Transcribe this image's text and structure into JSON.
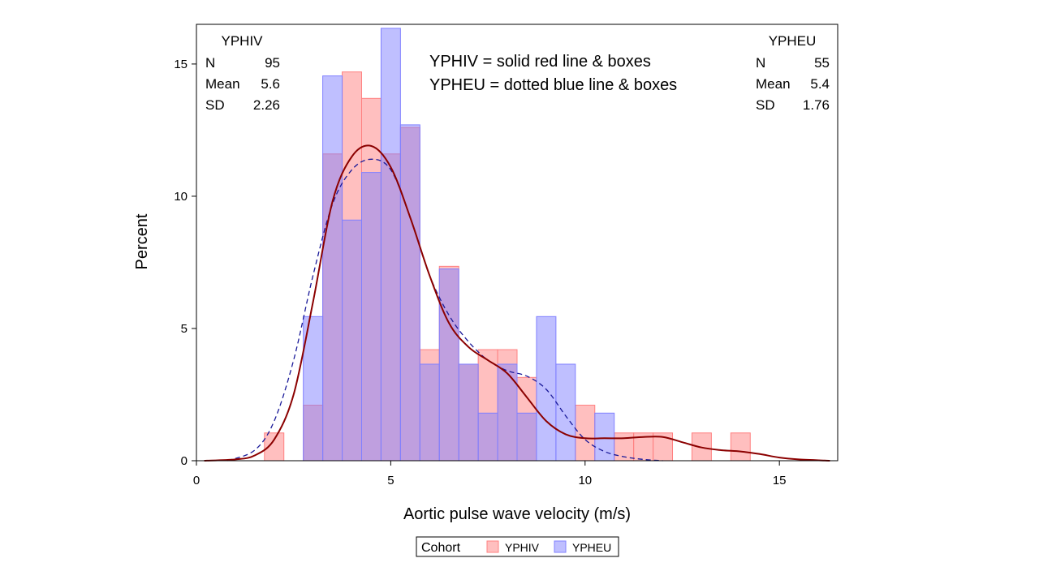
{
  "chart_data": {
    "type": "histogram",
    "xlabel": "Aortic pulse wave velocity (m/s)",
    "ylabel": "Percent",
    "xlim": [
      0,
      16.5
    ],
    "ylim": [
      0,
      16.5
    ],
    "x_ticks": [
      0,
      5,
      10,
      15
    ],
    "y_ticks": [
      0,
      5,
      10,
      15
    ],
    "bin_width": 0.5,
    "bin_starts": [
      1.75,
      2.25,
      2.75,
      3.25,
      3.75,
      4.25,
      4.75,
      5.25,
      5.75,
      6.25,
      6.75,
      7.25,
      7.75,
      8.25,
      8.75,
      9.25,
      9.75,
      10.25,
      10.75,
      11.25,
      11.75,
      12.25,
      12.75,
      13.25,
      13.75
    ],
    "series": [
      {
        "name": "YPHIV",
        "color": "#ff8080",
        "line_color": "#8b0000",
        "line_style": "solid",
        "values": [
          1.05,
          0,
          2.1,
          11.6,
          14.7,
          13.7,
          11.6,
          12.6,
          4.2,
          7.35,
          3.65,
          4.2,
          4.2,
          3.15,
          0,
          0,
          2.1,
          0,
          1.05,
          1.05,
          1.05,
          0,
          1.05,
          0,
          1.05
        ],
        "density_x": [
          0.2,
          1.0,
          1.5,
          2.0,
          2.5,
          3.0,
          3.5,
          4.0,
          4.5,
          5.0,
          5.5,
          6.0,
          6.5,
          7.0,
          7.5,
          8.0,
          8.5,
          9.0,
          9.5,
          10.0,
          10.5,
          11.0,
          11.5,
          12.0,
          12.5,
          13.0,
          13.5,
          14.0,
          14.5,
          15.0,
          15.5,
          16.3
        ],
        "density_y": [
          0,
          0.05,
          0.2,
          0.8,
          2.5,
          6.0,
          9.8,
          11.5,
          11.9,
          11.1,
          9.2,
          7.0,
          5.2,
          4.3,
          3.8,
          3.3,
          2.4,
          1.5,
          1.0,
          0.85,
          0.85,
          0.85,
          0.9,
          0.9,
          0.7,
          0.5,
          0.4,
          0.35,
          0.25,
          0.12,
          0.05,
          0
        ]
      },
      {
        "name": "YPHEU",
        "color": "#8080ff",
        "line_color": "#1a1a99",
        "line_style": "dashed",
        "values": [
          0,
          0,
          5.45,
          14.55,
          9.1,
          10.9,
          16.35,
          12.7,
          3.65,
          7.25,
          3.65,
          1.8,
          3.65,
          1.8,
          5.45,
          3.65,
          0,
          1.8,
          0,
          0,
          0,
          0,
          0,
          0,
          0
        ],
        "density_x": [
          0.8,
          1.5,
          2.0,
          2.5,
          3.0,
          3.5,
          4.0,
          4.5,
          5.0,
          5.5,
          6.0,
          6.5,
          7.0,
          7.5,
          8.0,
          8.5,
          9.0,
          9.5,
          10.0,
          10.5,
          11.0,
          11.5,
          12.0
        ],
        "density_y": [
          0,
          0.4,
          1.5,
          3.8,
          7.0,
          9.7,
          11.0,
          11.4,
          11.0,
          9.2,
          7.0,
          5.5,
          4.5,
          3.8,
          3.4,
          3.2,
          2.7,
          1.7,
          0.8,
          0.35,
          0.15,
          0.05,
          0
        ]
      }
    ]
  },
  "stats_left": {
    "title": "YPHIV",
    "rows": [
      {
        "label": "N",
        "value": "95"
      },
      {
        "label": "Mean",
        "value": "5.6"
      },
      {
        "label": "SD",
        "value": "2.26"
      }
    ]
  },
  "stats_right": {
    "title": "YPHEU",
    "rows": [
      {
        "label": "N",
        "value": "55"
      },
      {
        "label": "Mean",
        "value": "5.4"
      },
      {
        "label": "SD",
        "value": "1.76"
      }
    ]
  },
  "annotation": {
    "line1": "YPHIV = solid red line & boxes",
    "line2": "YPHEU = dotted blue line & boxes"
  },
  "legend": {
    "title": "Cohort",
    "items": [
      {
        "label": "YPHIV",
        "color": "#ff8080"
      },
      {
        "label": "YPHEU",
        "color": "#8080ff"
      }
    ]
  }
}
